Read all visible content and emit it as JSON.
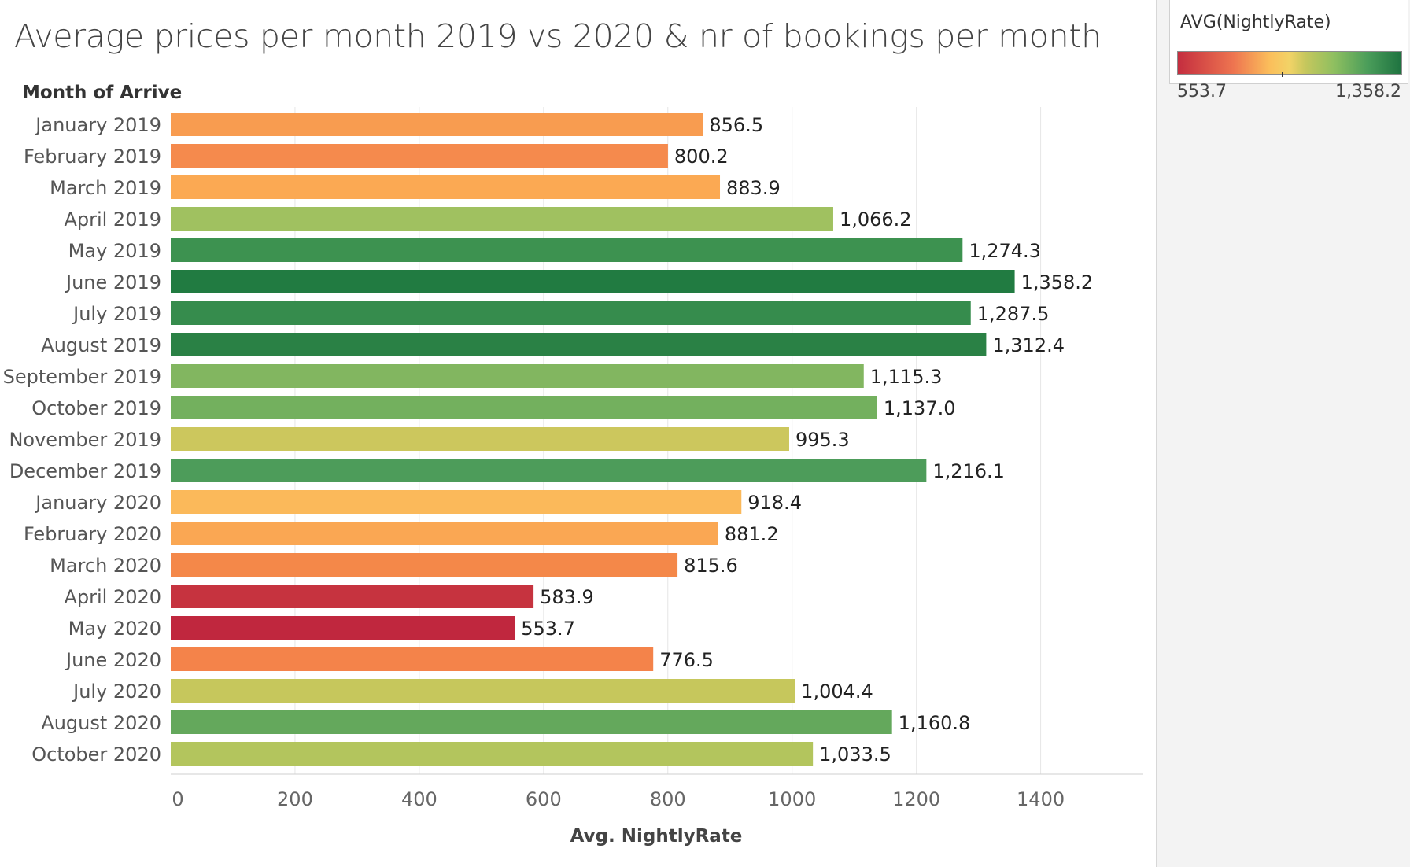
{
  "chart_data": {
    "type": "bar",
    "orientation": "horizontal",
    "title": "Average prices per month 2019 vs 2020 & nr of bookings per month",
    "row_header": "Month of Arrive",
    "xlabel": "Avg. NightlyRate",
    "xlim": [
      0,
      1550
    ],
    "x_ticks": [
      0,
      200,
      400,
      600,
      800,
      1000,
      1200,
      1400
    ],
    "grid": "vertical",
    "categories": [
      "January 2019",
      "February 2019",
      "March 2019",
      "April 2019",
      "May 2019",
      "June 2019",
      "July 2019",
      "August 2019",
      "September 2019",
      "October 2019",
      "November 2019",
      "December 2019",
      "January 2020",
      "February 2020",
      "March 2020",
      "April 2020",
      "May 2020",
      "June 2020",
      "July 2020",
      "August 2020",
      "October 2020"
    ],
    "values": [
      856.5,
      800.2,
      883.9,
      1066.2,
      1274.3,
      1358.2,
      1287.5,
      1312.4,
      1115.3,
      1137.0,
      995.3,
      1216.1,
      918.4,
      881.2,
      815.6,
      583.9,
      553.7,
      776.5,
      1004.4,
      1160.8,
      1033.5
    ],
    "value_labels": [
      "856.5",
      "800.2",
      "883.9",
      "1,066.2",
      "1,274.3",
      "1,358.2",
      "1,287.5",
      "1,312.4",
      "1,115.3",
      "1,137.0",
      "995.3",
      "1,216.1",
      "918.4",
      "881.2",
      "815.6",
      "583.9",
      "553.7",
      "776.5",
      "1,004.4",
      "1,160.8",
      "1,033.5"
    ],
    "bar_colors": [
      "#f89c50",
      "#f58a4d",
      "#fba953",
      "#a0c160",
      "#3d9250",
      "#217b41",
      "#368c4d",
      "#2a8145",
      "#82b660",
      "#73b05e",
      "#ccc75d",
      "#4d9c5a",
      "#fbb95a",
      "#faa753",
      "#f48849",
      "#c6333f",
      "#c0273e",
      "#f4834a",
      "#c6c75c",
      "#64a85c",
      "#b3c55d"
    ],
    "legend": {
      "title": "AVG(NightlyRate)",
      "min_label": "553.7",
      "max_label": "1,358.2",
      "placement": "top-right",
      "ramp_colors": [
        "#c42d3f",
        "#ee7550",
        "#fbbe5b",
        "#c6c75d",
        "#4a9d5a",
        "#1e7340"
      ]
    }
  }
}
